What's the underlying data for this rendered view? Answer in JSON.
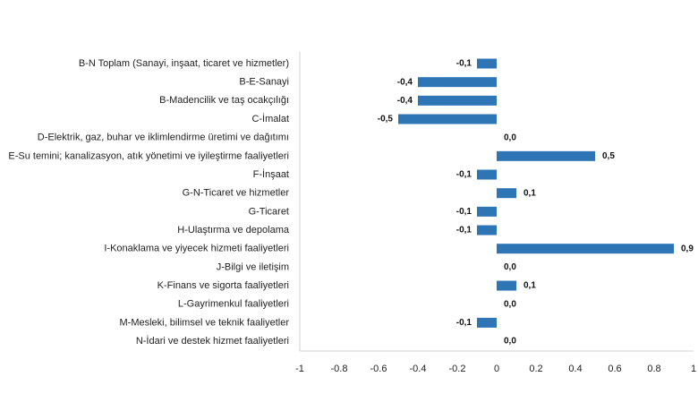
{
  "chart_data": {
    "type": "bar",
    "orientation": "horizontal",
    "title": "",
    "xlabel": "",
    "ylabel": "",
    "xlim": [
      -1,
      1
    ],
    "grid": false,
    "bar_color": "#2E75B6",
    "categories": [
      "B-N Toplam (Sanayi, inşaat, ticaret ve hizmetler)",
      "B-E-Sanayi",
      "B-Madencilik ve taş ocakçılığı",
      "C-İmalat",
      "D-Elektrik, gaz, buhar ve iklimlendirme üretimi ve dağıtımı",
      "E-Su temini; kanalizasyon, atık yönetimi ve iyileştirme faaliyetleri",
      "F-İnşaat",
      "G-N-Ticaret ve hizmetler",
      "G-Ticaret",
      "H-Ulaştırma ve depolama",
      "I-Konaklama ve yiyecek hizmeti faaliyetleri",
      "J-Bilgi ve iletişim",
      "K-Finans ve sigorta faaliyetleri",
      "L-Gayrimenkul faaliyetleri",
      "M-Mesleki, bilimsel ve teknik faaliyetler",
      "N-İdari ve destek hizmet faaliyetleri"
    ],
    "values": [
      -0.1,
      -0.4,
      -0.4,
      -0.5,
      0.0,
      0.5,
      -0.1,
      0.1,
      -0.1,
      -0.1,
      0.9,
      0.0,
      0.1,
      0.0,
      -0.1,
      0.0
    ],
    "value_labels": [
      "-0,1",
      "-0,4",
      "-0,4",
      "-0,5",
      "0,0",
      "0,5",
      "-0,1",
      "0,1",
      "-0,1",
      "-0,1",
      "0,9",
      "0,0",
      "0,1",
      "0,0",
      "-0,1",
      "0,0"
    ],
    "x_ticks": [
      -1,
      -0.8,
      -0.6,
      -0.4,
      -0.2,
      0,
      0.2,
      0.4,
      0.6,
      0.8,
      1
    ],
    "x_tick_labels": [
      "-1",
      "-0.8",
      "-0.6",
      "-0.4",
      "-0.2",
      "0",
      "0.2",
      "0.4",
      "0.6",
      "0.8",
      "1"
    ]
  }
}
